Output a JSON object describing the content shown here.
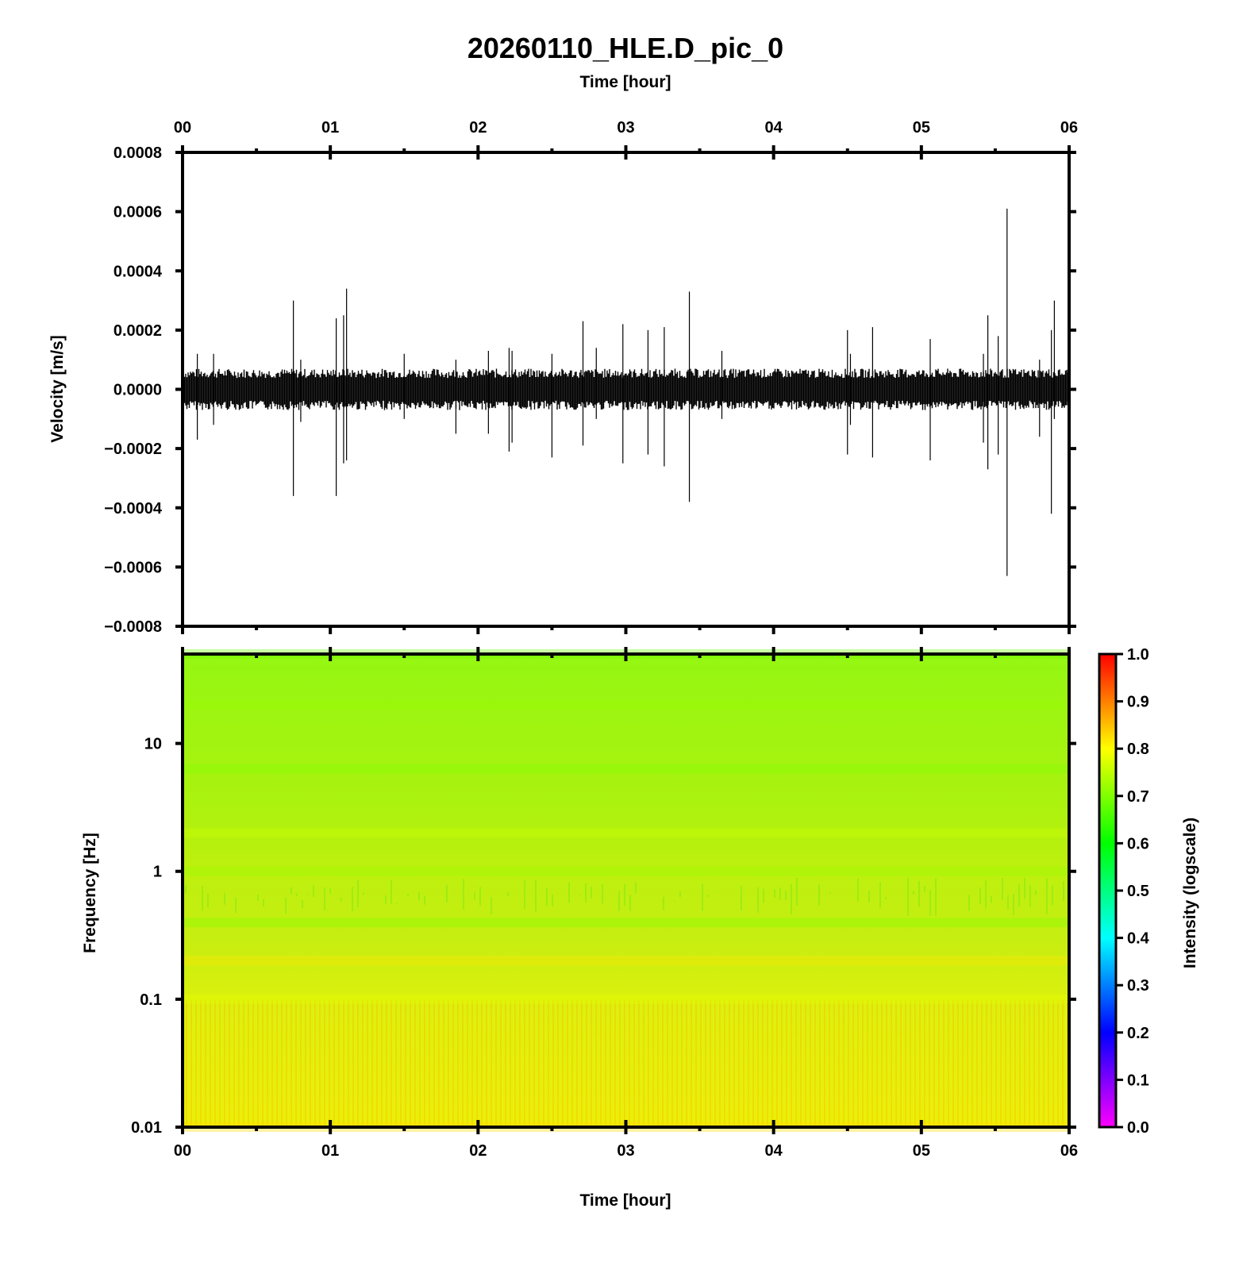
{
  "chart_data": [
    {
      "type": "line",
      "title": "20260110_HLE.D_pic_0",
      "top_xlabel": "Time [hour]",
      "ylabel": "Velocity [m/s]",
      "x_tick_labels": [
        "00",
        "01",
        "02",
        "03",
        "04",
        "05",
        "06"
      ],
      "y_tick_labels": [
        "0.0008",
        "0.0006",
        "0.0004",
        "0.0002",
        "0.0000",
        "−0.0002",
        "−0.0004",
        "−0.0006",
        "−0.0008"
      ],
      "xlim": [
        0,
        6
      ],
      "ylim": [
        -0.0008,
        0.0008
      ],
      "series": [
        {
          "background_noise_band": [
            -7e-05,
            7e-05
          ],
          "spikes_x": [
            0.1,
            0.21,
            0.75,
            0.8,
            1.04,
            1.09,
            1.11,
            1.5,
            1.85,
            2.07,
            2.21,
            2.23,
            2.5,
            2.71,
            2.8,
            2.98,
            3.15,
            3.26,
            3.43,
            3.65,
            4.5,
            4.52,
            4.67,
            5.06,
            5.42,
            5.45,
            5.52,
            5.58,
            5.8,
            5.88,
            5.9
          ],
          "spikes_y": [
            [
              -0.00017,
              0.00012
            ],
            [
              -0.00012,
              0.00012
            ],
            [
              -0.00036,
              0.0003
            ],
            [
              -0.00011,
              0.0001
            ],
            [
              -0.00036,
              0.00024
            ],
            [
              -0.00025,
              0.00025
            ],
            [
              -0.00024,
              0.00034
            ],
            [
              -0.0001,
              0.00012
            ],
            [
              -0.00015,
              0.0001
            ],
            [
              -0.00015,
              0.00013
            ],
            [
              -0.00021,
              0.00014
            ],
            [
              -0.00018,
              0.00013
            ],
            [
              -0.00023,
              0.00012
            ],
            [
              -0.00019,
              0.00023
            ],
            [
              -0.0001,
              0.00014
            ],
            [
              -0.00025,
              0.00022
            ],
            [
              -0.00022,
              0.0002
            ],
            [
              -0.00026,
              0.00021
            ],
            [
              -0.00038,
              0.00033
            ],
            [
              -0.0001,
              0.00013
            ],
            [
              -0.00022,
              0.0002
            ],
            [
              -0.00012,
              0.00012
            ],
            [
              -0.00023,
              0.00021
            ],
            [
              -0.00024,
              0.00017
            ],
            [
              -0.00018,
              0.00012
            ],
            [
              -0.00027,
              0.00025
            ],
            [
              -0.00022,
              0.00018
            ],
            [
              -0.00063,
              0.00061
            ],
            [
              -0.00016,
              0.0001
            ],
            [
              -0.00042,
              0.0002
            ],
            [
              -0.0001,
              0.0003
            ]
          ]
        }
      ]
    },
    {
      "type": "heatmap",
      "xlabel": "Time [hour]",
      "ylabel": "Frequency [Hz]",
      "x_tick_labels": [
        "00",
        "01",
        "02",
        "03",
        "04",
        "05",
        "06"
      ],
      "y_tick_labels": [
        "10",
        "1",
        "0.1",
        "0.01"
      ],
      "xlim": [
        0,
        6
      ],
      "ylim": [
        0.01,
        50
      ],
      "y_scale": "log",
      "intensity_profile": {
        "log10_freq": [
          1.7,
          1.3,
          0.8,
          0.3,
          0.0,
          -0.4,
          -0.7,
          -1.0,
          -2.0
        ],
        "intensity": [
          0.68,
          0.72,
          0.7,
          0.76,
          0.72,
          0.7,
          0.82,
          0.78,
          0.83
        ]
      },
      "colorbar": {
        "label": "Intensity (logscale)",
        "tick_labels": [
          "1.0",
          "0.9",
          "0.8",
          "0.7",
          "0.6",
          "0.5",
          "0.4",
          "0.3",
          "0.2",
          "0.1",
          "0.0"
        ],
        "range": [
          0,
          1
        ],
        "colormap": [
          "#ff00ff",
          "#0000ff",
          "#00ffff",
          "#00ff00",
          "#ffff00",
          "#ff0000"
        ]
      }
    }
  ]
}
